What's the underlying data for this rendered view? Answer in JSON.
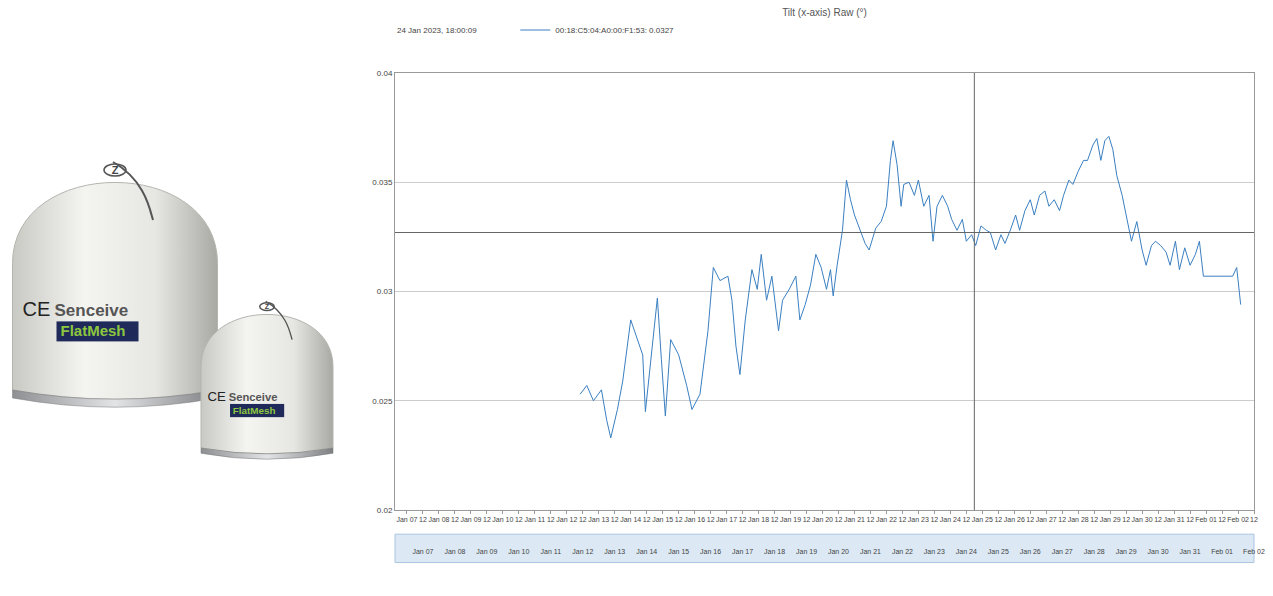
{
  "chart_data": {
    "type": "line",
    "title": "Tilt (x-axis) Raw (°)",
    "x": [
      "2023-01-12 10:00",
      "2023-01-12 15:00",
      "2023-01-12 20:00",
      "2023-01-13 02:00",
      "2023-01-13 06:00",
      "2023-01-13 09:00",
      "2023-01-13 14:00",
      "2023-01-13 18:00",
      "2023-01-14 00:00",
      "2023-01-14 04:00",
      "2023-01-14 09:00",
      "2023-01-14 11:00",
      "2023-01-14 16:00",
      "2023-01-14 20:00",
      "2023-01-14 23:00",
      "2023-01-15 02:00",
      "2023-01-15 06:00",
      "2023-01-15 12:00",
      "2023-01-15 18:00",
      "2023-01-15 22:00",
      "2023-01-16 04:00",
      "2023-01-16 10:00",
      "2023-01-16 14:00",
      "2023-01-16 19:00",
      "2023-01-17 01:00",
      "2023-01-17 04:00",
      "2023-01-17 07:00",
      "2023-01-17 10:00",
      "2023-01-17 14:00",
      "2023-01-17 19:00",
      "2023-01-17 23:00",
      "2023-01-18 02:00",
      "2023-01-18 06:00",
      "2023-01-18 10:00",
      "2023-01-18 15:00",
      "2023-01-18 18:00",
      "2023-01-18 23:00",
      "2023-01-19 04:00",
      "2023-01-19 07:00",
      "2023-01-19 11:00",
      "2023-01-19 15:00",
      "2023-01-19 19:00",
      "2023-01-19 23:00",
      "2023-01-20 03:00",
      "2023-01-20 06:00",
      "2023-01-20 08:00",
      "2023-01-20 11:00",
      "2023-01-20 15:00",
      "2023-01-20 18:00",
      "2023-01-20 21:00",
      "2023-01-21 00:00",
      "2023-01-21 04:00",
      "2023-01-21 08:00",
      "2023-01-21 11:00",
      "2023-01-21 16:00",
      "2023-01-21 20:00",
      "2023-01-22 00:00",
      "2023-01-22 03:00",
      "2023-01-22 05:00",
      "2023-01-22 08:00",
      "2023-01-22 11:00",
      "2023-01-22 13:00",
      "2023-01-22 17:00",
      "2023-01-22 21:00",
      "2023-01-23 00:00",
      "2023-01-23 04:00",
      "2023-01-23 08:00",
      "2023-01-23 11:00",
      "2023-01-23 14:00",
      "2023-01-23 18:00",
      "2023-01-23 22:00",
      "2023-01-24 01:00",
      "2023-01-24 05:00",
      "2023-01-24 09:00",
      "2023-01-24 12:00",
      "2023-01-24 16:00",
      "2023-01-24 19:00",
      "2023-01-24 23:00",
      "2023-01-25 03:00",
      "2023-01-25 06:00",
      "2023-01-25 10:00",
      "2023-01-25 14:00",
      "2023-01-25 17:00",
      "2023-01-25 21:00",
      "2023-01-26 01:00",
      "2023-01-26 04:00",
      "2023-01-26 08:00",
      "2023-01-26 12:00",
      "2023-01-26 15:00",
      "2023-01-26 19:00",
      "2023-01-26 23:00",
      "2023-01-27 02:00",
      "2023-01-27 06:00",
      "2023-01-27 10:00",
      "2023-01-27 13:00",
      "2023-01-27 17:00",
      "2023-01-27 20:00",
      "2023-01-28 00:00",
      "2023-01-28 04:00",
      "2023-01-28 07:00",
      "2023-01-28 11:00",
      "2023-01-28 14:00",
      "2023-01-28 17:00",
      "2023-01-28 20:00",
      "2023-01-28 23:00",
      "2023-01-29 02:00",
      "2023-01-29 05:00",
      "2023-01-29 09:00",
      "2023-01-29 13:00",
      "2023-01-29 16:00",
      "2023-01-29 20:00",
      "2023-01-30 00:00",
      "2023-01-30 03:00",
      "2023-01-30 07:00",
      "2023-01-30 10:00",
      "2023-01-30 14:00",
      "2023-01-30 18:00",
      "2023-01-30 21:00",
      "2023-01-31 01:00",
      "2023-01-31 04:00",
      "2023-01-31 08:00",
      "2023-01-31 12:00",
      "2023-01-31 16:00",
      "2023-01-31 19:00",
      "2023-01-31 22:00",
      "2023-02-01 05:00",
      "2023-02-01 13:00",
      "2023-02-01 20:00",
      "2023-02-01 23:00",
      "2023-02-02 02:00"
    ],
    "series": [
      {
        "name": "00:18:C5:04:A0:00:F1:53: 0.0327",
        "color": "#3a7fc1",
        "values": [
          0.0253,
          0.0257,
          0.025,
          0.0255,
          0.0241,
          0.0233,
          0.0246,
          0.0259,
          0.0287,
          0.028,
          0.0271,
          0.0245,
          0.0275,
          0.0297,
          0.0269,
          0.0243,
          0.0278,
          0.0271,
          0.0257,
          0.0246,
          0.0253,
          0.0282,
          0.0311,
          0.0305,
          0.0307,
          0.0296,
          0.0275,
          0.0262,
          0.0287,
          0.031,
          0.0301,
          0.0317,
          0.0296,
          0.0307,
          0.0282,
          0.0296,
          0.0301,
          0.0307,
          0.0287,
          0.0294,
          0.0303,
          0.0317,
          0.0311,
          0.0301,
          0.031,
          0.0298,
          0.0312,
          0.0328,
          0.0351,
          0.0342,
          0.0335,
          0.0328,
          0.0322,
          0.0319,
          0.0329,
          0.0332,
          0.0339,
          0.036,
          0.0369,
          0.0358,
          0.0339,
          0.0349,
          0.035,
          0.0344,
          0.0351,
          0.0339,
          0.0344,
          0.0323,
          0.0339,
          0.0344,
          0.0339,
          0.0333,
          0.0328,
          0.0333,
          0.0323,
          0.0326,
          0.0321,
          0.033,
          0.0328,
          0.0327,
          0.0319,
          0.0326,
          0.0322,
          0.0328,
          0.0335,
          0.0328,
          0.0337,
          0.0342,
          0.0335,
          0.0344,
          0.0346,
          0.0339,
          0.0342,
          0.0337,
          0.0344,
          0.0351,
          0.0349,
          0.0355,
          0.036,
          0.036,
          0.0367,
          0.037,
          0.036,
          0.0369,
          0.0371,
          0.0365,
          0.0353,
          0.0344,
          0.0332,
          0.0323,
          0.0332,
          0.0319,
          0.0312,
          0.0321,
          0.0323,
          0.0321,
          0.0318,
          0.0312,
          0.0323,
          0.031,
          0.032,
          0.0312,
          0.0317,
          0.0323,
          0.0307,
          0.0307,
          0.0307,
          0.0307,
          0.0311,
          0.0294
        ]
      }
    ],
    "xlim": [
      "2023-01-06 15:00",
      "2023-02-02 12:00"
    ],
    "xticks": [
      {
        "value": "2023-01-07 00:00",
        "label": "Jan 07"
      },
      {
        "value": "2023-01-07 12:00",
        "label": "12"
      },
      {
        "value": "2023-01-08 00:00",
        "label": "Jan 08"
      },
      {
        "value": "2023-01-08 12:00",
        "label": "12"
      },
      {
        "value": "2023-01-09 00:00",
        "label": "Jan 09"
      },
      {
        "value": "2023-01-09 12:00",
        "label": "12"
      },
      {
        "value": "2023-01-10 00:00",
        "label": "Jan 10"
      },
      {
        "value": "2023-01-10 12:00",
        "label": "12"
      },
      {
        "value": "2023-01-11 00:00",
        "label": "Jan 11"
      },
      {
        "value": "2023-01-11 12:00",
        "label": "12"
      },
      {
        "value": "2023-01-12 00:00",
        "label": "Jan 12"
      },
      {
        "value": "2023-01-12 12:00",
        "label": "12"
      },
      {
        "value": "2023-01-13 00:00",
        "label": "Jan 13"
      },
      {
        "value": "2023-01-13 12:00",
        "label": "12"
      },
      {
        "value": "2023-01-14 00:00",
        "label": "Jan 14"
      },
      {
        "value": "2023-01-14 12:00",
        "label": "12"
      },
      {
        "value": "2023-01-15 00:00",
        "label": "Jan 15"
      },
      {
        "value": "2023-01-15 12:00",
        "label": "12"
      },
      {
        "value": "2023-01-16 00:00",
        "label": "Jan 16"
      },
      {
        "value": "2023-01-16 12:00",
        "label": "12"
      },
      {
        "value": "2023-01-17 00:00",
        "label": "Jan 17"
      },
      {
        "value": "2023-01-17 12:00",
        "label": "12"
      },
      {
        "value": "2023-01-18 00:00",
        "label": "Jan 18"
      },
      {
        "value": "2023-01-18 12:00",
        "label": "12"
      },
      {
        "value": "2023-01-19 00:00",
        "label": "Jan 19"
      },
      {
        "value": "2023-01-19 12:00",
        "label": "12"
      },
      {
        "value": "2023-01-20 00:00",
        "label": "Jan 20"
      },
      {
        "value": "2023-01-20 12:00",
        "label": "12"
      },
      {
        "value": "2023-01-21 00:00",
        "label": "Jan 21"
      },
      {
        "value": "2023-01-21 12:00",
        "label": "12"
      },
      {
        "value": "2023-01-22 00:00",
        "label": "Jan 22"
      },
      {
        "value": "2023-01-22 12:00",
        "label": "12"
      },
      {
        "value": "2023-01-23 00:00",
        "label": "Jan 23"
      },
      {
        "value": "2023-01-23 12:00",
        "label": "12"
      },
      {
        "value": "2023-01-24 00:00",
        "label": "Jan 24"
      },
      {
        "value": "2023-01-24 12:00",
        "label": "12"
      },
      {
        "value": "2023-01-25 00:00",
        "label": "Jan 25"
      },
      {
        "value": "2023-01-25 12:00",
        "label": "12"
      },
      {
        "value": "2023-01-26 00:00",
        "label": "Jan 26"
      },
      {
        "value": "2023-01-26 12:00",
        "label": "12"
      },
      {
        "value": "2023-01-27 00:00",
        "label": "Jan 27"
      },
      {
        "value": "2023-01-27 12:00",
        "label": "12"
      },
      {
        "value": "2023-01-28 00:00",
        "label": "Jan 28"
      },
      {
        "value": "2023-01-28 12:00",
        "label": "12"
      },
      {
        "value": "2023-01-29 00:00",
        "label": "Jan 29"
      },
      {
        "value": "2023-01-29 12:00",
        "label": "12"
      },
      {
        "value": "2023-01-30 00:00",
        "label": "Jan 30"
      },
      {
        "value": "2023-01-30 12:00",
        "label": "12"
      },
      {
        "value": "2023-01-31 00:00",
        "label": "Jan 31"
      },
      {
        "value": "2023-01-31 12:00",
        "label": "12"
      },
      {
        "value": "2023-02-01 00:00",
        "label": "Feb 01"
      },
      {
        "value": "2023-02-01 12:00",
        "label": "12"
      },
      {
        "value": "2023-02-02 00:00",
        "label": "Feb 02"
      },
      {
        "value": "2023-02-02 12:00",
        "label": "12"
      }
    ],
    "x2ticks": [
      {
        "value": "2023-01-07 12:00",
        "label": "Jan 07"
      },
      {
        "value": "2023-01-08 12:00",
        "label": "Jan 08"
      },
      {
        "value": "2023-01-09 12:00",
        "label": "Jan 09"
      },
      {
        "value": "2023-01-10 12:00",
        "label": "Jan 10"
      },
      {
        "value": "2023-01-11 12:00",
        "label": "Jan 11"
      },
      {
        "value": "2023-01-12 12:00",
        "label": "Jan 12"
      },
      {
        "value": "2023-01-13 12:00",
        "label": "Jan 13"
      },
      {
        "value": "2023-01-14 12:00",
        "label": "Jan 14"
      },
      {
        "value": "2023-01-15 12:00",
        "label": "Jan 15"
      },
      {
        "value": "2023-01-16 12:00",
        "label": "Jan 16"
      },
      {
        "value": "2023-01-17 12:00",
        "label": "Jan 17"
      },
      {
        "value": "2023-01-18 12:00",
        "label": "Jan 18"
      },
      {
        "value": "2023-01-19 12:00",
        "label": "Jan 19"
      },
      {
        "value": "2023-01-20 12:00",
        "label": "Jan 20"
      },
      {
        "value": "2023-01-21 12:00",
        "label": "Jan 21"
      },
      {
        "value": "2023-01-22 12:00",
        "label": "Jan 22"
      },
      {
        "value": "2023-01-23 12:00",
        "label": "Jan 23"
      },
      {
        "value": "2023-01-24 12:00",
        "label": "Jan 24"
      },
      {
        "value": "2023-01-25 12:00",
        "label": "Jan 25"
      },
      {
        "value": "2023-01-26 12:00",
        "label": "Jan 26"
      },
      {
        "value": "2023-01-27 12:00",
        "label": "Jan 27"
      },
      {
        "value": "2023-01-28 12:00",
        "label": "Jan 28"
      },
      {
        "value": "2023-01-29 12:00",
        "label": "Jan 29"
      },
      {
        "value": "2023-01-30 12:00",
        "label": "Jan 30"
      },
      {
        "value": "2023-01-31 12:00",
        "label": "Jan 31"
      },
      {
        "value": "2023-02-01 12:00",
        "label": "Feb 01"
      },
      {
        "value": "2023-02-02 12:00",
        "label": "Feb 02"
      }
    ],
    "ylim": [
      0.02,
      0.04
    ],
    "yticks": [
      0.02,
      0.025,
      0.03,
      0.035,
      0.04
    ],
    "grid": true,
    "legend": "top left",
    "cursor": {
      "x": "2023-01-24 18:00:09",
      "y": 0.0327,
      "label": "24 Jan 2023, 18:00:09"
    }
  },
  "photo": {
    "brand": "Senceive",
    "product": "FlatMesh",
    "mark": "CE",
    "top_mark": "Z"
  }
}
